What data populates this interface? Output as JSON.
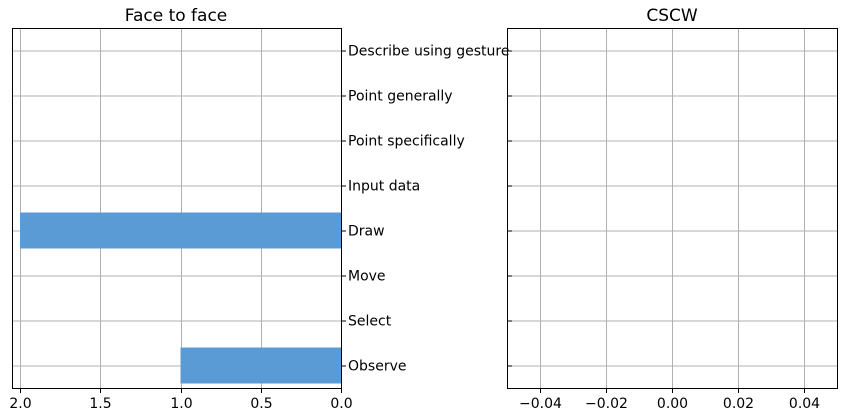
{
  "chart_data": [
    {
      "type": "bar",
      "orientation": "horizontal",
      "title": "Face to face",
      "categories": [
        "Observe",
        "Select",
        "Move",
        "Draw",
        "Input data",
        "Point specifically",
        "Point generally",
        "Describe using gesture"
      ],
      "values": [
        1,
        0,
        0,
        2,
        0,
        0,
        0,
        0
      ],
      "xlim": [
        2.05,
        0
      ],
      "xticks": [
        "2.0",
        "1.5",
        "1.0",
        "0.5",
        "0.0"
      ],
      "xlabel": "",
      "ylabel": "",
      "grid": true,
      "bar_color": "#5b9bd5"
    },
    {
      "type": "bar",
      "orientation": "horizontal",
      "title": "CSCW",
      "categories": [
        "Observe",
        "Select",
        "Move",
        "Draw",
        "Input data",
        "Point specifically",
        "Point generally",
        "Describe using gesture"
      ],
      "values": [
        0,
        0,
        0,
        0,
        0,
        0,
        0,
        0
      ],
      "xlim": [
        -0.05,
        0.05
      ],
      "xticks": [
        "−0.04",
        "−0.02",
        "0.00",
        "0.02",
        "0.04"
      ],
      "xlabel": "",
      "ylabel": "",
      "grid": true,
      "bar_color": "#5b9bd5"
    }
  ]
}
